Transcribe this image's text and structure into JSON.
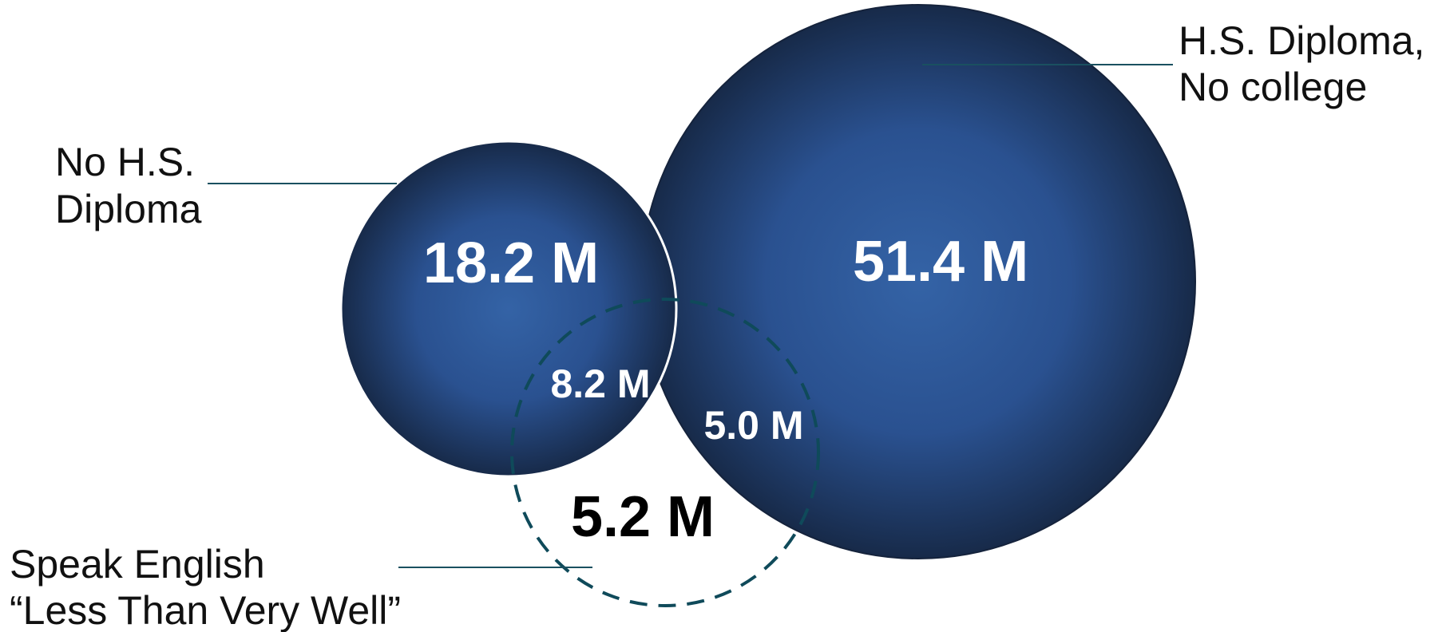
{
  "labels": {
    "no_hs_line1": "No H.S.",
    "no_hs_line2": "Diploma",
    "hs_line1": "H.S. Diploma,",
    "hs_line2": "No college",
    "esl_line1": "Speak English",
    "esl_line2": "“Less Than Very Well”"
  },
  "values": {
    "no_hs_total": "18.2 M",
    "hs_total": "51.4 M",
    "no_hs_and_esl": "8.2 M",
    "hs_and_esl": "5.0 M",
    "esl_only": "5.2 M"
  },
  "colors": {
    "circle_center": "#3463a6",
    "circle_edge": "#172a49",
    "dashed_circle": "#0f4a5a",
    "leader_line": "#1a5060",
    "value_text": "#ffffff",
    "outside_value_text": "#000000"
  }
}
